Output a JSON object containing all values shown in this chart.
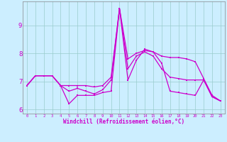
{
  "background_color": "#cceeff",
  "line_color": "#cc00cc",
  "hours": [
    0,
    1,
    2,
    3,
    4,
    5,
    6,
    7,
    8,
    9,
    10,
    11,
    12,
    13,
    14,
    15,
    16,
    17,
    18,
    19,
    20,
    21,
    22,
    23
  ],
  "series_low": [
    6.85,
    7.2,
    7.2,
    7.2,
    6.85,
    6.2,
    6.5,
    6.5,
    6.5,
    6.6,
    6.65,
    9.6,
    7.05,
    7.75,
    8.15,
    8.05,
    7.65,
    6.65,
    6.6,
    6.55,
    6.5,
    7.05,
    6.45,
    6.3
  ],
  "series_mid": [
    6.85,
    7.2,
    7.2,
    7.2,
    6.85,
    6.65,
    6.75,
    6.65,
    6.55,
    6.7,
    7.05,
    9.6,
    7.45,
    7.9,
    8.05,
    7.9,
    7.45,
    7.15,
    7.1,
    7.05,
    7.05,
    7.05,
    6.45,
    6.3
  ],
  "series_high": [
    6.85,
    7.2,
    7.2,
    7.2,
    6.85,
    6.85,
    6.85,
    6.85,
    6.8,
    6.85,
    7.15,
    9.6,
    7.8,
    8.0,
    8.1,
    8.05,
    7.9,
    7.85,
    7.85,
    7.8,
    7.7,
    7.1,
    6.5,
    6.3
  ],
  "xlabel": "Windchill (Refroidissement éolien,°C)",
  "ylim": [
    5.85,
    9.85
  ],
  "yticks": [
    6,
    7,
    8,
    9
  ],
  "xticks": [
    0,
    1,
    2,
    3,
    4,
    5,
    6,
    7,
    8,
    9,
    10,
    11,
    12,
    13,
    14,
    15,
    16,
    17,
    18,
    19,
    20,
    21,
    22,
    23
  ]
}
